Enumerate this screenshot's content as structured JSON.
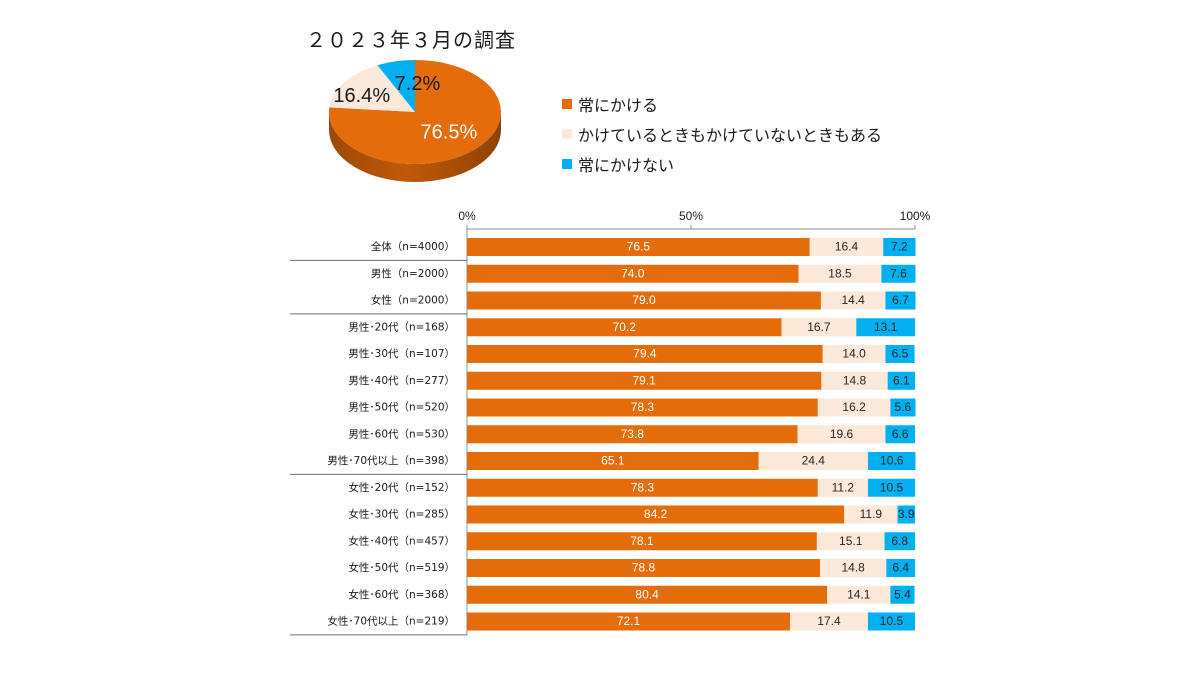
{
  "title": "２０２３年３月の調査",
  "chart_data": [
    {
      "type": "pie",
      "3d": true,
      "labels": [
        "常にかける",
        "かけているときもかけていないときもある",
        "常にかけない"
      ],
      "values": [
        76.5,
        16.4,
        7.2
      ],
      "value_suffix": "%",
      "colors": [
        "#E46C0A",
        "#FDE9D9",
        "#00B0F0"
      ],
      "legend_position": "right"
    },
    {
      "type": "bar",
      "orientation": "horizontal",
      "stacked": true,
      "categories": [
        "全体（n=4000）",
        "男性（n=2000）",
        "女性（n=2000）",
        "男性･20代（n=168）",
        "男性･30代（n=107）",
        "男性･40代（n=277）",
        "男性･50代（n=520）",
        "男性･60代（n=530）",
        "男性･70代以上（n=398）",
        "女性･20代（n=152）",
        "女性･30代（n=285）",
        "女性･40代（n=457）",
        "女性･50代（n=519）",
        "女性･60代（n=368）",
        "女性･70代以上（n=219）"
      ],
      "series": [
        {
          "name": "常にかける",
          "color": "#E46C0A",
          "values": [
            76.5,
            74.0,
            79.0,
            70.2,
            79.4,
            79.1,
            78.3,
            73.8,
            65.1,
            78.3,
            84.2,
            78.1,
            78.8,
            80.4,
            72.1
          ]
        },
        {
          "name": "かけているときもかけていないときもある",
          "color": "#FDE9D9",
          "values": [
            16.4,
            18.5,
            14.4,
            16.7,
            14.0,
            14.8,
            16.2,
            19.6,
            24.4,
            11.2,
            11.9,
            15.1,
            14.8,
            14.1,
            17.4
          ]
        },
        {
          "name": "常にかけない",
          "color": "#00B0F0",
          "values": [
            7.2,
            7.6,
            6.7,
            13.1,
            6.5,
            6.1,
            5.6,
            6.6,
            10.6,
            10.5,
            3.9,
            6.8,
            6.4,
            5.4,
            10.5
          ]
        }
      ],
      "xlim": [
        0,
        100
      ],
      "xtick_values": [
        0,
        50,
        100
      ],
      "xtick_labels": [
        "0%",
        "50%",
        "100%"
      ],
      "xaxis_position": "top",
      "data_labels": true,
      "group_breaks_after": [
        0,
        2,
        8,
        14
      ]
    }
  ]
}
